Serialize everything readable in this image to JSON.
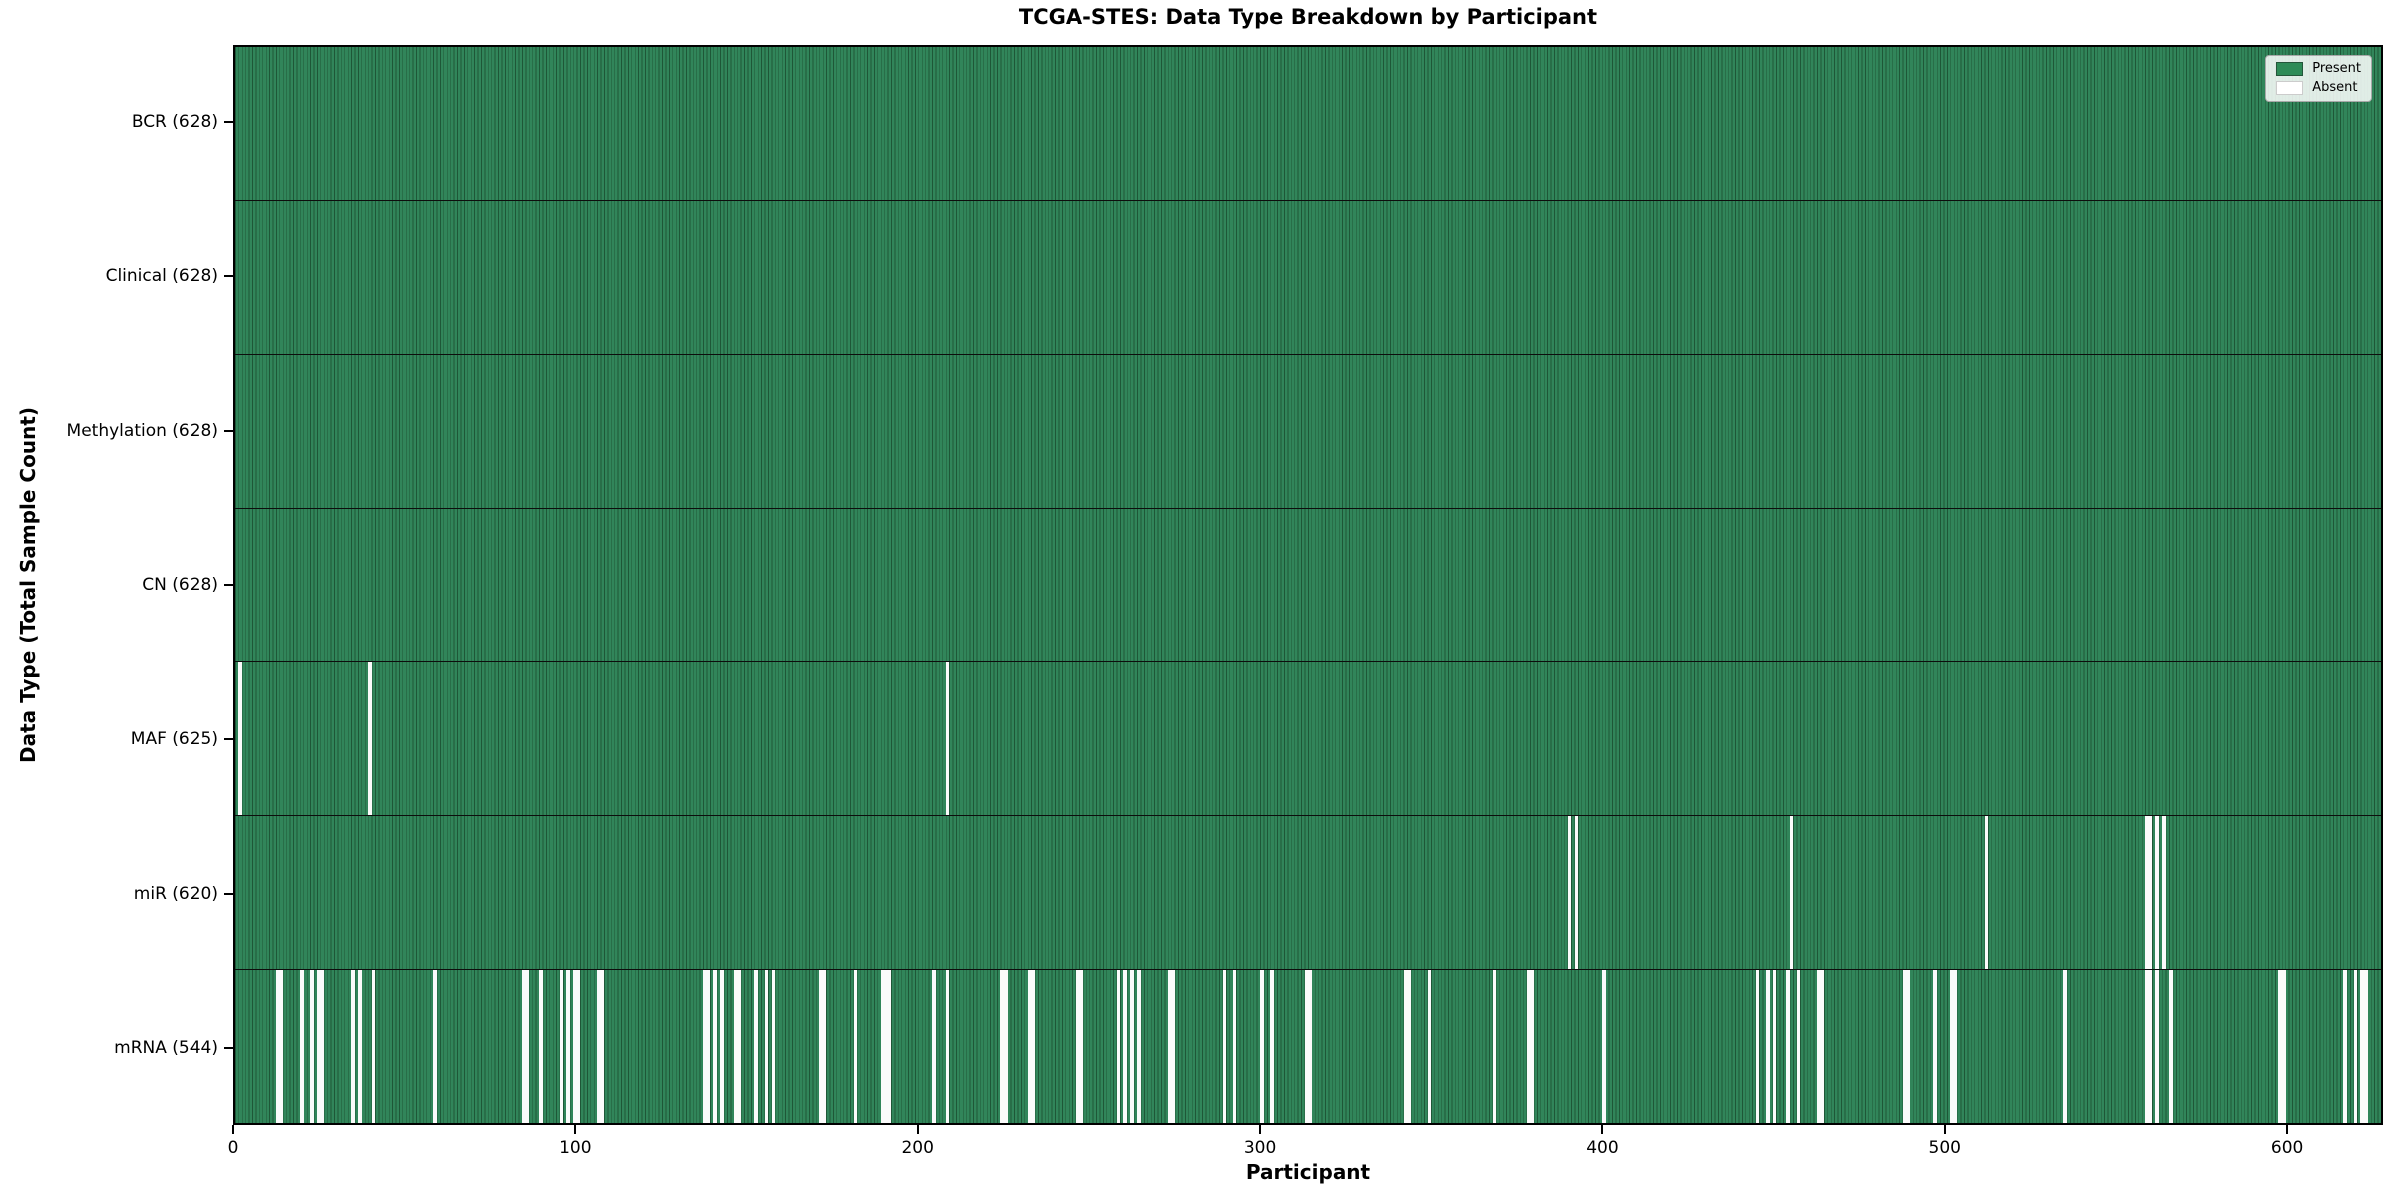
{
  "figure": {
    "title": "TCGA-STES: Data Type Breakdown by Participant"
  },
  "chart_data": {
    "type": "heatmap",
    "title": "TCGA-STES: Data Type Breakdown by Participant",
    "xlabel": "Participant",
    "ylabel": "Data Type (Total Sample Count)",
    "x_ticks": [
      0,
      100,
      200,
      300,
      400,
      500,
      600
    ],
    "x_range": [
      0,
      628
    ],
    "n_participants": 628,
    "grid": false,
    "legend": {
      "position": "upper-right",
      "entries": [
        {
          "label": "Present",
          "color": "#2e8b57"
        },
        {
          "label": "Absent",
          "color": "#ffffff"
        }
      ]
    },
    "colors": {
      "present": "#2e8b57",
      "present_edge": "#1e5737",
      "absent": "#fbfbfb",
      "axes_edge": "#000000"
    },
    "rows": [
      {
        "data_type": "BCR",
        "label": "BCR (628)",
        "present_count": 628,
        "absent_participants": []
      },
      {
        "data_type": "Clinical",
        "label": "Clinical (628)",
        "present_count": 628,
        "absent_participants": []
      },
      {
        "data_type": "Methylation",
        "label": "Methylation (628)",
        "present_count": 628,
        "absent_participants": []
      },
      {
        "data_type": "CN",
        "label": "CN (628)",
        "present_count": 628,
        "absent_participants": []
      },
      {
        "data_type": "MAF",
        "label": "MAF (625)",
        "present_count": 625,
        "absent_participants": [
          1,
          39,
          208
        ]
      },
      {
        "data_type": "miR",
        "label": "miR (620)",
        "present_count": 620,
        "absent_participants": [
          390,
          392,
          455,
          512,
          559,
          560,
          562,
          564
        ]
      },
      {
        "data_type": "mRNA",
        "label": "mRNA (544)",
        "present_count": 544,
        "absent_participants": [
          12,
          13,
          19,
          22,
          24,
          25,
          34,
          36,
          40,
          58,
          84,
          85,
          89,
          95,
          97,
          99,
          100,
          106,
          107,
          137,
          138,
          140,
          142,
          146,
          147,
          152,
          155,
          157,
          171,
          172,
          181,
          189,
          190,
          191,
          204,
          208,
          224,
          225,
          232,
          233,
          246,
          247,
          258,
          260,
          262,
          264,
          273,
          274,
          289,
          292,
          300,
          303,
          313,
          314,
          342,
          343,
          349,
          368,
          378,
          379,
          400,
          445,
          448,
          450,
          454,
          457,
          463,
          464,
          488,
          489,
          497,
          502,
          503,
          535,
          559,
          560,
          562,
          566,
          598,
          599,
          617,
          620,
          622,
          623
        ]
      }
    ]
  }
}
